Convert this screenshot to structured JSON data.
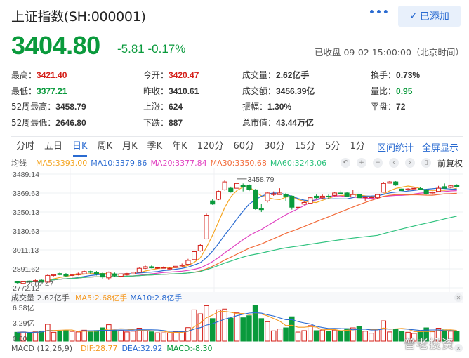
{
  "header": {
    "title": "上证指数(SH:000001)",
    "more_label": "•••",
    "added_button": {
      "icon": "check-icon",
      "label": "已添加"
    },
    "price": "3404.80",
    "change": "-5.81",
    "change_pct": "-0.17%",
    "status": "已收盘 09-02 15:00:00（北京时间）"
  },
  "stats": {
    "col1": [
      {
        "label": "最高：",
        "value": "3421.40",
        "color": "red"
      },
      {
        "label": "最低：",
        "value": "3377.21",
        "color": "green"
      },
      {
        "label": "52周最高：",
        "value": "3458.79",
        "color": ""
      },
      {
        "label": "52周最低：",
        "value": "2646.80",
        "color": ""
      }
    ],
    "col2": [
      {
        "label": "今开：",
        "value": "3420.47",
        "color": "red"
      },
      {
        "label": "昨收：",
        "value": "3410.61",
        "color": ""
      },
      {
        "label": "上涨：",
        "value": "624",
        "color": ""
      },
      {
        "label": "下跌：",
        "value": "887",
        "color": ""
      }
    ],
    "col3": [
      {
        "label": "成交量：",
        "value": "2.62亿手",
        "color": ""
      },
      {
        "label": "成交额：",
        "value": "3456.39亿",
        "color": ""
      },
      {
        "label": "振幅：",
        "value": "1.30%",
        "color": ""
      },
      {
        "label": "总市值：",
        "value": "43.44万亿",
        "color": ""
      }
    ],
    "col4": [
      {
        "label": "换手：",
        "value": "0.73%",
        "color": ""
      },
      {
        "label": "量比：",
        "value": "0.95",
        "color": "green"
      },
      {
        "label": "平盘：",
        "value": "72",
        "color": ""
      }
    ]
  },
  "tabs": [
    {
      "label": "分时"
    },
    {
      "label": "五日"
    },
    {
      "label": "日K",
      "active": true
    },
    {
      "label": "周K"
    },
    {
      "label": "月K"
    },
    {
      "label": "季K"
    },
    {
      "label": "年K"
    },
    {
      "label": "120分"
    },
    {
      "label": "60分"
    },
    {
      "label": "30分"
    },
    {
      "label": "15分"
    },
    {
      "label": "5分"
    },
    {
      "label": "1分"
    }
  ],
  "tab_links": [
    "区间统计",
    "全屏显示"
  ],
  "ma_legend": {
    "label": "均线",
    "items": [
      {
        "text": "MA5:3393.00",
        "color": "#f5a623"
      },
      {
        "text": "MA10:3379.86",
        "color": "#2a6bd1"
      },
      {
        "text": "MA20:3377.84",
        "color": "#e040c0"
      },
      {
        "text": "MA30:3350.68",
        "color": "#f26b3a"
      },
      {
        "text": "MA60:3243.06",
        "color": "#2ec27e"
      }
    ],
    "controls": [
      {
        "name": "reset-icon",
        "glyph": "↶"
      },
      {
        "name": "zoom-in-icon",
        "glyph": "+"
      },
      {
        "name": "zoom-out-icon",
        "glyph": "−"
      },
      {
        "name": "prev-icon",
        "glyph": "‹"
      },
      {
        "name": "next-icon",
        "glyph": "›"
      },
      {
        "name": "candle-style-icon",
        "glyph": "▯"
      }
    ],
    "adjust_label": "前复权"
  },
  "volume_legend": {
    "label": "成交量 2.62亿手",
    "ma5": "MA5:2.68亿手",
    "ma10": "MA10:2.8亿手"
  },
  "macd_legend": {
    "label": "MACD (12,26,9)",
    "dif": "DIF:28.77",
    "dea": "DEA:32.92",
    "macd": "MACD:-8.30"
  },
  "watermark": "普老投资",
  "chart_data": {
    "type": "candlestick",
    "title": "上证指数 日K",
    "y_ticks": [
      3489.14,
      3369.63,
      3250.13,
      3130.63,
      3011.13,
      2891.62,
      2772.12
    ],
    "ylim": [
      2772.12,
      3489.14
    ],
    "annotations": [
      {
        "text": "3458.79",
        "type": "high-marker"
      },
      {
        "text": "2802.47",
        "type": "low-marker"
      }
    ],
    "candles": [
      [
        2810,
        2805,
        2815,
        2800
      ],
      [
        2800,
        2810,
        2815,
        2802
      ],
      [
        2815,
        2812,
        2820,
        2808
      ],
      [
        2812,
        2818,
        2824,
        2806
      ],
      [
        2820,
        2808,
        2825,
        2805
      ],
      [
        2808,
        2850,
        2855,
        2805
      ],
      [
        2850,
        2855,
        2860,
        2845
      ],
      [
        2862,
        2855,
        2870,
        2850
      ],
      [
        2858,
        2848,
        2865,
        2840
      ],
      [
        2850,
        2855,
        2858,
        2835
      ],
      [
        2855,
        2860,
        2868,
        2850
      ],
      [
        2860,
        2875,
        2880,
        2856
      ],
      [
        2875,
        2870,
        2880,
        2862
      ],
      [
        2870,
        2862,
        2878,
        2850
      ],
      [
        2862,
        2840,
        2868,
        2830
      ],
      [
        2835,
        2870,
        2875,
        2822
      ],
      [
        2860,
        2850,
        2868,
        2840
      ],
      [
        2845,
        2860,
        2862,
        2838
      ],
      [
        2855,
        2862,
        2866,
        2850
      ],
      [
        2860,
        2870,
        2875,
        2855
      ],
      [
        2870,
        2895,
        2900,
        2868
      ],
      [
        2895,
        2905,
        2912,
        2890
      ],
      [
        2905,
        2898,
        2912,
        2895
      ],
      [
        2898,
        2900,
        2905,
        2892
      ],
      [
        2898,
        2900,
        2908,
        2895
      ],
      [
        2895,
        2895,
        2902,
        2888
      ],
      [
        2900,
        2908,
        2912,
        2895
      ],
      [
        2910,
        2915,
        2925,
        2905
      ],
      [
        2920,
        2945,
        2955,
        2918
      ],
      [
        2950,
        3000,
        3005,
        2945
      ],
      [
        3005,
        3040,
        3050,
        3000
      ],
      [
        3080,
        3230,
        3240,
        3078
      ],
      [
        3320,
        3300,
        3330,
        3295
      ],
      [
        3330,
        3380,
        3385,
        3325
      ],
      [
        3390,
        3440,
        3450,
        3385
      ],
      [
        3400,
        3380,
        3410,
        3372
      ],
      [
        3400,
        3430,
        3458,
        3395
      ],
      [
        3420,
        3410,
        3430,
        3380
      ],
      [
        3420,
        3390,
        3425,
        3382
      ],
      [
        3390,
        3270,
        3395,
        3265
      ],
      [
        3270,
        3265,
        3300,
        3250
      ],
      [
        3320,
        3370,
        3375,
        3310
      ],
      [
        3360,
        3365,
        3380,
        3352
      ],
      [
        3360,
        3370,
        3400,
        3360
      ],
      [
        3360,
        3350,
        3370,
        3320
      ],
      [
        3350,
        3280,
        3355,
        3265
      ],
      [
        3280,
        3280,
        3290,
        3268
      ],
      [
        3300,
        3310,
        3320,
        3295
      ],
      [
        3305,
        3340,
        3345,
        3300
      ],
      [
        3350,
        3340,
        3360,
        3335
      ],
      [
        3340,
        3350,
        3360,
        3330
      ],
      [
        3350,
        3345,
        3360,
        3335
      ],
      [
        3355,
        3370,
        3375,
        3350
      ],
      [
        3370,
        3365,
        3385,
        3360
      ],
      [
        3370,
        3350,
        3378,
        3345
      ],
      [
        3345,
        3360,
        3390,
        3345
      ],
      [
        3360,
        3340,
        3385,
        3330
      ],
      [
        3345,
        3345,
        3350,
        3320
      ],
      [
        3345,
        3345,
        3352,
        3340
      ],
      [
        3340,
        3360,
        3365,
        3335
      ],
      [
        3375,
        3430,
        3440,
        3372
      ],
      [
        3432,
        3440,
        3445,
        3430
      ],
      [
        3440,
        3420,
        3445,
        3415
      ],
      [
        3395,
        3385,
        3400,
        3380
      ],
      [
        3390,
        3395,
        3400,
        3385
      ],
      [
        3400,
        3400,
        3405,
        3395
      ],
      [
        3398,
        3395,
        3408,
        3390
      ],
      [
        3390,
        3365,
        3395,
        3360
      ],
      [
        3370,
        3375,
        3380,
        3360
      ],
      [
        3380,
        3400,
        3415,
        3378
      ],
      [
        3410,
        3400,
        3430,
        3398
      ],
      [
        3405,
        3415,
        3420,
        3400
      ],
      [
        3420,
        3410,
        3425,
        3405
      ]
    ],
    "volume_ylim": [
      0,
      6.58
    ],
    "volume_ticks": [
      "6.58亿",
      "3.29亿",
      "0.00"
    ],
    "volume_note": "volume in 亿手; red hollow = up day, green solid = down day"
  }
}
